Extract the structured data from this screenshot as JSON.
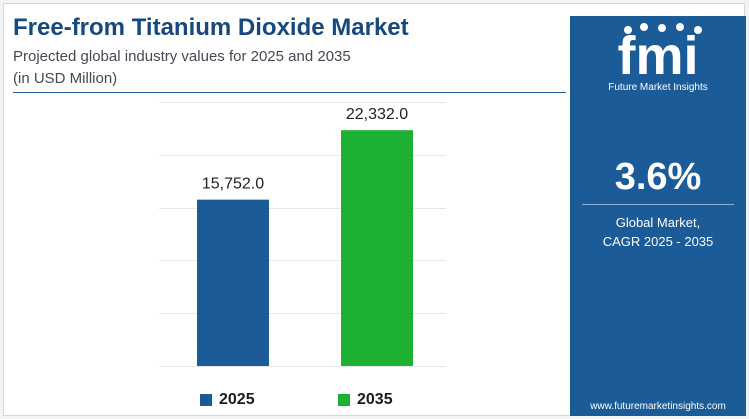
{
  "header": {
    "title": "Free-from Titanium Dioxide Market",
    "subtitle_line1": "Projected global industry values for 2025 and 2035",
    "subtitle_line2": "(in USD Million)"
  },
  "chart_data": {
    "type": "bar",
    "categories": [
      "2025",
      "2035"
    ],
    "values": [
      15752.0,
      22332.0
    ],
    "value_labels": [
      "15,752.0",
      "22,332.0"
    ],
    "colors": [
      "#1b5b97",
      "#1db133"
    ],
    "title": "Free-from Titanium Dioxide Market",
    "ylim": [
      0,
      25000
    ],
    "grid": true,
    "legend": "bottom",
    "legend_entries": [
      "2025",
      "2035"
    ]
  },
  "panel": {
    "brand": "fmi",
    "brand_tagline": "Future Market Insights",
    "cagr_value": "3.6%",
    "cagr_line1": "Global Market,",
    "cagr_line2": "CAGR 2025 - 2035",
    "website": "www.futuremarketinsights.com"
  },
  "colors": {
    "title": "#17497f",
    "panel_background": "#1b5b97",
    "bar_2025": "#1b5b97",
    "bar_2035": "#1db133"
  }
}
